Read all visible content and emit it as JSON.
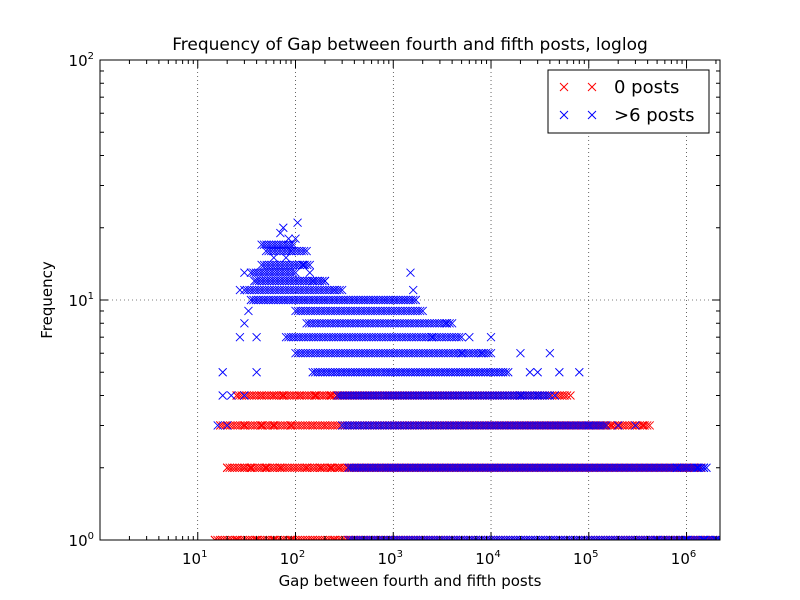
{
  "chart_data": {
    "type": "scatter",
    "title": "Frequency of Gap between fourth and fifth posts, loglog",
    "xlabel": "Gap between fourth and fifth posts",
    "ylabel": "Frequency",
    "xscale": "log",
    "yscale": "log",
    "xlim": [
      1,
      2200000
    ],
    "ylim": [
      1,
      100
    ],
    "grid": true,
    "marker": "x",
    "legend": {
      "placement": "top-right",
      "entries": [
        "0 posts",
        ">6 posts"
      ]
    },
    "x_ticks": [
      {
        "base": "10",
        "exp": "1",
        "value": 10
      },
      {
        "base": "10",
        "exp": "2",
        "value": 100
      },
      {
        "base": "10",
        "exp": "3",
        "value": 1000
      },
      {
        "base": "10",
        "exp": "4",
        "value": 10000
      },
      {
        "base": "10",
        "exp": "5",
        "value": 100000
      },
      {
        "base": "10",
        "exp": "6",
        "value": 1000000
      }
    ],
    "y_ticks": [
      {
        "base": "10",
        "exp": "0",
        "value": 1
      },
      {
        "base": "10",
        "exp": "1",
        "value": 10
      },
      {
        "base": "10",
        "exp": "2",
        "value": 100
      }
    ],
    "series": [
      {
        "name": "0 posts",
        "color": "#ff0000",
        "groups": [
          {
            "y": 1,
            "x_from": 15,
            "x_to": 2000000
          },
          {
            "y": 2,
            "x_from": 20,
            "x_to": 1300000
          },
          {
            "y": 3,
            "x_from": 17,
            "x_to": 420000
          },
          {
            "y": 4,
            "x_from": 25,
            "x_to": 60000
          }
        ],
        "points": [
          [
            20,
            2
          ],
          [
            30,
            2
          ],
          [
            35,
            2
          ],
          [
            50,
            2
          ],
          [
            70,
            2
          ],
          [
            130,
            2
          ],
          [
            180,
            2
          ],
          [
            230,
            2
          ],
          [
            280,
            2
          ],
          [
            900000,
            2
          ],
          [
            1000000,
            2
          ],
          [
            1200000,
            2
          ],
          [
            1400000,
            2
          ],
          [
            17,
            3
          ],
          [
            30,
            3
          ],
          [
            45,
            3
          ],
          [
            60,
            3
          ],
          [
            90,
            3
          ],
          [
            150,
            3
          ],
          [
            200,
            3
          ],
          [
            130000,
            3
          ],
          [
            170000,
            3
          ],
          [
            220000,
            3
          ],
          [
            280000,
            3
          ],
          [
            360000,
            3
          ],
          [
            25,
            4
          ],
          [
            45,
            4
          ],
          [
            60,
            4
          ],
          [
            75,
            4
          ],
          [
            110,
            4
          ],
          [
            160,
            4
          ],
          [
            230,
            4
          ],
          [
            65000,
            4
          ],
          [
            15,
            1
          ],
          [
            25,
            1
          ],
          [
            40,
            1
          ],
          [
            60,
            1
          ],
          [
            90,
            1
          ],
          [
            150,
            1
          ],
          [
            250,
            1
          ],
          [
            350,
            1
          ]
        ]
      },
      {
        "name": ">6 posts",
        "color": "#0000ff",
        "groups": [
          {
            "y": 1,
            "x_from": 350,
            "x_to": 2200000
          },
          {
            "y": 2,
            "x_from": 350,
            "x_to": 1600000
          },
          {
            "y": 3,
            "x_from": 300,
            "x_to": 150000
          },
          {
            "y": 4,
            "x_from": 270,
            "x_to": 40000
          },
          {
            "y": 5,
            "x_from": 150,
            "x_to": 15000
          },
          {
            "y": 6,
            "x_from": 100,
            "x_to": 10000
          },
          {
            "y": 7,
            "x_from": 80,
            "x_to": 5000
          },
          {
            "y": 8,
            "x_from": 130,
            "x_to": 4000
          },
          {
            "y": 9,
            "x_from": 100,
            "x_to": 2000
          },
          {
            "y": 10,
            "x_from": 35,
            "x_to": 1700
          },
          {
            "y": 11,
            "x_from": 30,
            "x_to": 300
          },
          {
            "y": 12,
            "x_from": 40,
            "x_to": 200
          },
          {
            "y": 13,
            "x_from": 35,
            "x_to": 100
          },
          {
            "y": 14,
            "x_from": 45,
            "x_to": 140
          },
          {
            "y": 16,
            "x_from": 50,
            "x_to": 130
          },
          {
            "y": 17,
            "x_from": 45,
            "x_to": 95
          }
        ],
        "points": [
          [
            18,
            5
          ],
          [
            40,
            5
          ],
          [
            18,
            4
          ],
          [
            22,
            4
          ],
          [
            30,
            4
          ],
          [
            16,
            3
          ],
          [
            20,
            3
          ],
          [
            27,
            7
          ],
          [
            40,
            7
          ],
          [
            30,
            8
          ],
          [
            33,
            9
          ],
          [
            27,
            11
          ],
          [
            38,
            12
          ],
          [
            30,
            13
          ],
          [
            60,
            15
          ],
          [
            80,
            15
          ],
          [
            70,
            19
          ],
          [
            100,
            18
          ],
          [
            105,
            21
          ],
          [
            85,
            18
          ],
          [
            90,
            16
          ],
          [
            75,
            20
          ],
          [
            120,
            14
          ],
          [
            140,
            13
          ],
          [
            150,
            12
          ],
          [
            200,
            12
          ],
          [
            250,
            11
          ],
          [
            1500,
            13
          ],
          [
            1600,
            11
          ],
          [
            2500,
            7
          ],
          [
            3500,
            8
          ],
          [
            5000,
            6
          ],
          [
            6000,
            7
          ],
          [
            8000,
            6
          ],
          [
            10000,
            7
          ],
          [
            20000,
            6
          ],
          [
            25000,
            5
          ],
          [
            30000,
            5
          ],
          [
            40000,
            6
          ],
          [
            45000,
            4
          ],
          [
            50000,
            5
          ],
          [
            80000,
            5
          ],
          [
            20000,
            4
          ],
          [
            30000,
            4
          ],
          [
            100000,
            3
          ],
          [
            200000,
            3
          ],
          [
            300000,
            3
          ],
          [
            800000,
            2
          ],
          [
            1000000,
            2
          ],
          [
            1300000,
            2
          ],
          [
            1500000,
            2
          ],
          [
            500000,
            1
          ],
          [
            1000000,
            1
          ],
          [
            1500000,
            1
          ],
          [
            2000000,
            1
          ]
        ]
      }
    ]
  }
}
